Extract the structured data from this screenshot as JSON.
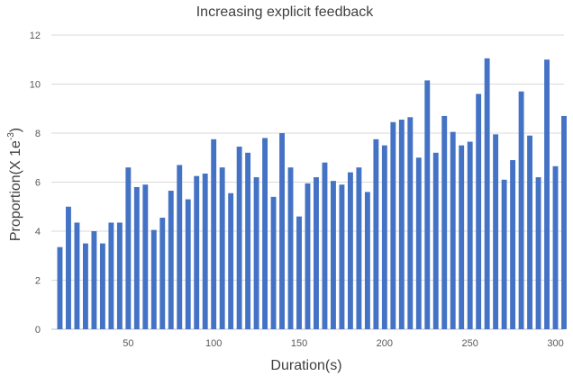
{
  "chart_data": {
    "type": "bar",
    "title": "Increasing explicit feedback",
    "xlabel": "Duration(s)",
    "ylabel": "Proportion(X 1e",
    "ylabel_superscript": "-3",
    "ylabel_suffix": ")",
    "ylim": [
      0,
      12
    ],
    "xlim": [
      5,
      305
    ],
    "grid": true,
    "bar_color": "#4472C4",
    "y_ticks": [
      0,
      2,
      4,
      6,
      8,
      10,
      12
    ],
    "x_ticks": [
      50,
      100,
      150,
      200,
      250,
      300
    ],
    "x": [
      10,
      15,
      20,
      25,
      30,
      35,
      40,
      45,
      50,
      55,
      60,
      65,
      70,
      75,
      80,
      85,
      90,
      95,
      100,
      105,
      110,
      115,
      120,
      125,
      130,
      135,
      140,
      145,
      150,
      155,
      160,
      165,
      170,
      175,
      180,
      185,
      190,
      195,
      200,
      205,
      210,
      215,
      220,
      225,
      230,
      235,
      240,
      245,
      250,
      255,
      260,
      265,
      270,
      275,
      280,
      285,
      290,
      295,
      300,
      305
    ],
    "values": [
      3.35,
      5.0,
      4.35,
      3.5,
      4.0,
      3.5,
      4.35,
      4.35,
      6.6,
      5.8,
      5.9,
      4.05,
      4.55,
      5.65,
      6.7,
      5.3,
      6.25,
      6.35,
      7.75,
      6.6,
      5.55,
      7.45,
      7.2,
      6.2,
      7.8,
      5.4,
      8.0,
      6.6,
      4.6,
      5.95,
      6.2,
      6.8,
      6.05,
      5.9,
      6.4,
      6.6,
      5.6,
      7.75,
      7.5,
      8.45,
      8.55,
      8.65,
      7.0,
      10.15,
      7.2,
      8.7,
      8.05,
      7.5,
      7.65,
      9.6,
      11.05,
      7.95,
      6.1,
      6.9,
      9.7,
      7.9,
      6.2,
      11.0,
      6.65,
      8.7
    ]
  }
}
